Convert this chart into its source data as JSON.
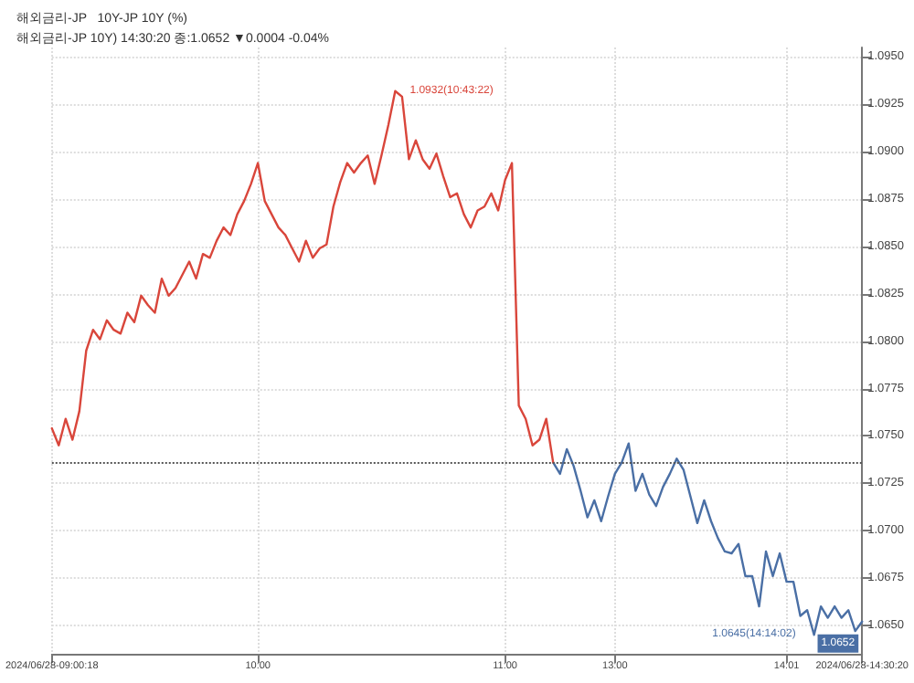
{
  "chart_data": {
    "type": "line",
    "title": "해외금리-JP   10Y-JP 10Y (%)",
    "subtitle": "해외금리-JP 10Y) 14:30:20 종:1.0652 ▼0.0004 -0.04%",
    "categories": [
      "2024/06/28-09:00:18",
      null,
      null,
      null,
      null,
      null,
      null,
      null,
      null,
      null,
      null,
      null,
      null,
      null,
      null,
      null,
      null,
      null,
      null,
      null,
      null,
      null,
      null,
      null,
      null,
      null,
      null,
      null,
      null,
      null,
      "10:00",
      null,
      null,
      null,
      null,
      null,
      null,
      null,
      null,
      null,
      null,
      null,
      null,
      null,
      null,
      null,
      null,
      null,
      null,
      null,
      null,
      null,
      null,
      null,
      null,
      null,
      null,
      null,
      null,
      null,
      null,
      null,
      null,
      null,
      null,
      null,
      "11:00",
      null,
      null,
      null,
      null,
      null,
      null,
      null,
      null,
      null,
      null,
      null,
      null,
      null,
      null,
      null,
      "13:00",
      null,
      null,
      null,
      null,
      null,
      null,
      null,
      null,
      null,
      null,
      null,
      null,
      null,
      null,
      null,
      null,
      null,
      null,
      null,
      null,
      null,
      null,
      null,
      null,
      "14:01",
      null,
      null,
      null,
      null,
      null,
      null,
      null,
      null,
      null,
      null,
      "2024/06/28-14:30:20"
    ],
    "series": [
      {
        "color": "#d9463b",
        "values": [
          1.0754,
          1.0745,
          1.0759,
          1.0748,
          1.0763,
          1.0795,
          1.0806,
          1.0801,
          1.0811,
          1.0806,
          1.0804,
          1.0815,
          1.081,
          1.0824,
          1.0819,
          1.0815,
          1.0833,
          1.0824,
          1.0828,
          1.0835,
          1.0842,
          1.0833,
          1.0846,
          1.0844,
          1.0853,
          1.086,
          1.0856,
          1.0867,
          1.0874,
          1.0883,
          1.0894,
          1.0874,
          1.0867,
          1.086,
          1.0856,
          1.0849,
          1.0842,
          1.0853,
          1.0844,
          1.0849,
          1.0851,
          1.0871,
          1.0884,
          1.0894,
          1.0889,
          1.0894,
          1.0898,
          1.0883,
          1.0898,
          1.0914,
          1.0932,
          1.0929,
          1.0896,
          1.0906,
          1.0896,
          1.0891,
          1.0899,
          1.0887,
          1.0876,
          1.0878,
          1.0867,
          1.086,
          1.0869,
          1.0871,
          1.0878,
          1.0869,
          1.0885,
          1.0894,
          1.0766,
          1.0759,
          1.0745,
          1.0748,
          1.0759,
          1.0736,
          null,
          null,
          null,
          null,
          null,
          null,
          null,
          null,
          null,
          null,
          null,
          null,
          null,
          null,
          null,
          null,
          null,
          null,
          null,
          null,
          null,
          null,
          null,
          null,
          null,
          null,
          null,
          null,
          null,
          null,
          null,
          null,
          null,
          null,
          null,
          null,
          null,
          null,
          null,
          null,
          null,
          null,
          null,
          null,
          null
        ]
      },
      {
        "color": "#4a6fa5",
        "values": [
          null,
          null,
          null,
          null,
          null,
          null,
          null,
          null,
          null,
          null,
          null,
          null,
          null,
          null,
          null,
          null,
          null,
          null,
          null,
          null,
          null,
          null,
          null,
          null,
          null,
          null,
          null,
          null,
          null,
          null,
          null,
          null,
          null,
          null,
          null,
          null,
          null,
          null,
          null,
          null,
          null,
          null,
          null,
          null,
          null,
          null,
          null,
          null,
          null,
          null,
          null,
          null,
          null,
          null,
          null,
          null,
          null,
          null,
          null,
          null,
          null,
          null,
          null,
          null,
          null,
          null,
          null,
          null,
          null,
          null,
          null,
          null,
          null,
          1.0736,
          1.073,
          1.0743,
          1.0734,
          1.0721,
          1.0707,
          1.0716,
          1.0705,
          1.0718,
          1.073,
          1.0736,
          1.0746,
          1.0721,
          1.073,
          1.0719,
          1.0713,
          1.0723,
          1.073,
          1.0738,
          1.0732,
          1.0718,
          1.0704,
          1.0716,
          1.0705,
          1.0696,
          1.0689,
          1.0688,
          1.0693,
          1.0676,
          1.0676,
          1.066,
          1.0689,
          1.0676,
          1.0688,
          1.0673,
          1.0673,
          1.0655,
          1.0658,
          1.0645,
          1.066,
          1.0654,
          1.066,
          1.0654,
          1.0658,
          1.0647,
          1.0652
        ]
      }
    ],
    "ylim": [
      1.0635,
      1.0955
    ],
    "yticks": [
      {
        "value": 1.065,
        "label": "1.0650"
      },
      {
        "value": 1.0675,
        "label": "1.0675"
      },
      {
        "value": 1.07,
        "label": "1.0700"
      },
      {
        "value": 1.0725,
        "label": "1.0725"
      },
      {
        "value": 1.075,
        "label": "1.0750"
      },
      {
        "value": 1.0775,
        "label": "1.0775"
      },
      {
        "value": 1.08,
        "label": "1.0800"
      },
      {
        "value": 1.0825,
        "label": "1.0825"
      },
      {
        "value": 1.085,
        "label": "1.0850"
      },
      {
        "value": 1.0875,
        "label": "1.0875"
      },
      {
        "value": 1.09,
        "label": "1.0900"
      },
      {
        "value": 1.0925,
        "label": "1.0925"
      },
      {
        "value": 1.095,
        "label": "1.0950"
      }
    ],
    "ref_lines": [
      {
        "axis": "y",
        "value": 1.0736,
        "color": "#555555",
        "line_style": "dotted"
      }
    ],
    "annotations": [
      "1.0932(10:43:22)",
      "1.0645(14:14:02)",
      "1.0652"
    ],
    "grid": true,
    "marker": "none",
    "line_style": "solid"
  }
}
